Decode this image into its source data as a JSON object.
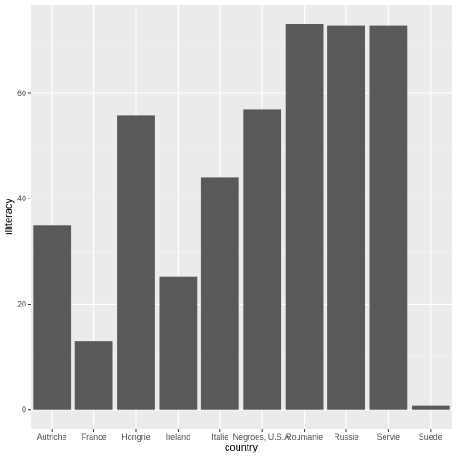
{
  "chart_data": {
    "type": "bar",
    "xlabel": "country",
    "ylabel": "illiteracy",
    "categories": [
      "Autriche",
      "France",
      "Hongrie",
      "Ireland",
      "Italie",
      "Negroes, U.S.A.",
      "Roumanie",
      "Russie",
      "Servie",
      "Suede"
    ],
    "values": [
      35.0,
      13.0,
      55.8,
      25.3,
      44.1,
      57.0,
      73.2,
      72.8,
      72.8,
      0.7
    ],
    "yticks": [
      0,
      20,
      40,
      60
    ],
    "ylim": [
      -3.66,
      76.86
    ],
    "grid": true,
    "colors": {
      "panel": "#ebebeb",
      "grid_major": "#ffffff",
      "grid_minor": "#f5f5f5",
      "bar": "#595959"
    }
  }
}
